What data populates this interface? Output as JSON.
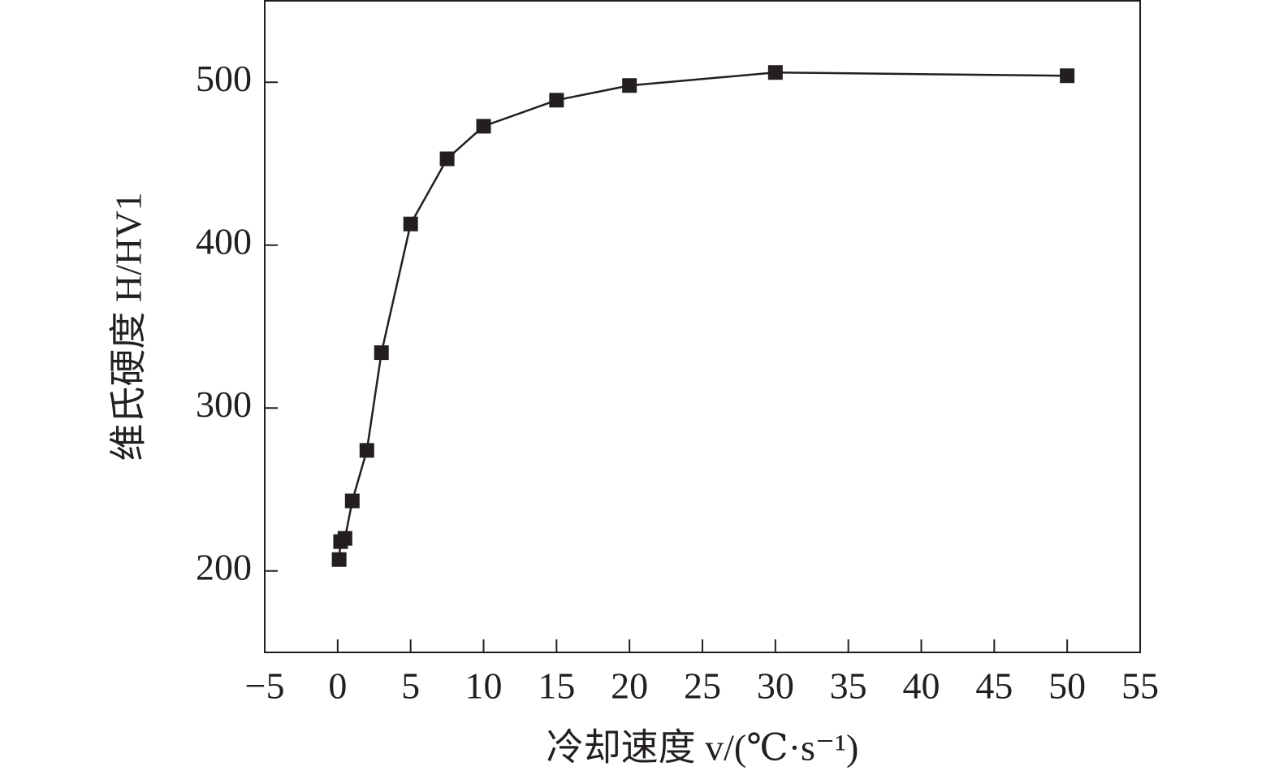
{
  "chart_data": {
    "type": "line",
    "xlabel": "冷却速度 v/(℃·s⁻¹)",
    "ylabel": "维氏硬度 H/HV1",
    "x": [
      0.1,
      0.2,
      0.5,
      1,
      2,
      3,
      5,
      7.5,
      10,
      15,
      20,
      30,
      50
    ],
    "series": [
      {
        "color": "#231f20",
        "values": [
          207,
          218,
          220,
          243,
          274,
          334,
          413,
          453,
          473,
          489,
          498,
          506,
          504
        ]
      }
    ],
    "xlim": [
      -5,
      55
    ],
    "xticks": [
      {
        "value": -5,
        "label": "−5"
      },
      0,
      5,
      10,
      15,
      20,
      25,
      30,
      35,
      40,
      45,
      50,
      55
    ],
    "ylim": [
      150,
      550
    ],
    "yticks": [
      200,
      300,
      400,
      500
    ],
    "marker": "square"
  }
}
